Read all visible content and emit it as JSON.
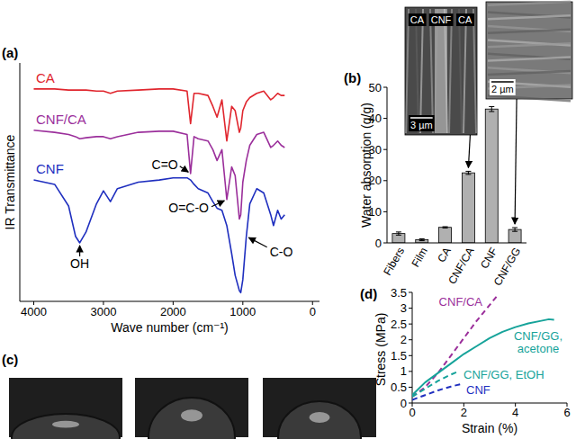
{
  "chart_data": [
    {
      "type": "line",
      "panel": "(a)",
      "xlabel": "Wave number (cm⁻¹)",
      "ylabel": "IR Transmittance",
      "xlim": [
        4200,
        -100
      ],
      "xticks": [
        4000,
        3000,
        2000,
        1000,
        0
      ],
      "ylim": [
        0,
        110
      ],
      "tick_labels": "x",
      "x": [
        4000,
        3700,
        3500,
        3400,
        3340,
        3250,
        3100,
        3000,
        2900,
        2800,
        2500,
        2200,
        2000,
        1800,
        1750,
        1700,
        1640,
        1500,
        1430,
        1370,
        1300,
        1230,
        1160,
        1110,
        1050,
        1030,
        1000,
        950,
        900,
        800,
        700,
        600,
        560,
        500,
        450,
        400
      ],
      "series": [
        {
          "name": "CA",
          "color": "#e0262e",
          "line_style": "solid",
          "values": [
            98,
            98,
            97.5,
            97.5,
            97.5,
            97.5,
            97,
            97,
            96,
            97,
            97.5,
            98,
            98,
            97,
            82,
            96,
            96,
            95,
            90,
            85,
            93,
            74,
            90,
            88,
            78,
            80,
            88,
            92,
            94,
            96,
            97,
            93,
            94,
            96,
            95,
            95
          ]
        },
        {
          "name": "CNF/CA",
          "color": "#9b2f9b",
          "line_style": "solid",
          "values": [
            79,
            78,
            77,
            76,
            75,
            75.5,
            76,
            76,
            75,
            76,
            78,
            78.5,
            78.5,
            77,
            59,
            76,
            75,
            74,
            70,
            65,
            70,
            47,
            62,
            58,
            38,
            40,
            55,
            65,
            72,
            77,
            78,
            71,
            72,
            74,
            72,
            71
          ]
        },
        {
          "name": "CNF",
          "color": "#1f2fbf",
          "line_style": "solid",
          "values": [
            56,
            54,
            44,
            30,
            27,
            32,
            45,
            51,
            46,
            52,
            55,
            56,
            57,
            57,
            56,
            54,
            52,
            50,
            46,
            43,
            42,
            35,
            22,
            12,
            5,
            4,
            10,
            30,
            45,
            52,
            50,
            40,
            35,
            42,
            38,
            40
          ]
        }
      ],
      "annotations": [
        {
          "text": "OH",
          "x": 3340,
          "y": 27
        },
        {
          "text": "C=O",
          "x": 1750,
          "y": 59
        },
        {
          "text": "O=C-O",
          "x": 1230,
          "y": 47
        },
        {
          "text": "C-O",
          "x": 950,
          "y": 30
        }
      ]
    },
    {
      "type": "bar",
      "panel": "(b)",
      "ylabel": "Water absorption (g/g)",
      "categories": [
        "Fibers",
        "Film",
        "CA",
        "CNF/CA",
        "CNF",
        "CNF/GG"
      ],
      "values": [
        3,
        1,
        5,
        22.5,
        43,
        4.3
      ],
      "errors": [
        0.5,
        0.3,
        0.2,
        0.5,
        0.8,
        0.6
      ],
      "color": "#b0b0b0",
      "ylim": [
        0,
        50
      ],
      "yticks": [
        0,
        10,
        20,
        30,
        40,
        50
      ],
      "insets": [
        {
          "labels": [
            "CA",
            "CNF",
            "CA"
          ],
          "scale_bar": "3 µm",
          "target": "CNF/CA"
        },
        {
          "scale_bar": "2 µm",
          "target": "CNF/GG"
        }
      ]
    },
    {
      "type": "line",
      "panel": "(d)",
      "xlabel": "Strain (%)",
      "ylabel": "Stress (MPa)",
      "xlim": [
        0,
        6
      ],
      "xticks": [
        0,
        2,
        4,
        6
      ],
      "ylim": [
        0,
        3.5
      ],
      "yticks": [
        0,
        0.5,
        1,
        1.5,
        2,
        2.5,
        3,
        3.5
      ],
      "series": [
        {
          "name": "CNF/CA",
          "color": "#9b2f9b",
          "line_style": "dashed",
          "x": [
            0,
            0.5,
            1,
            1.5,
            2,
            2.5,
            3,
            3.3
          ],
          "values": [
            0.2,
            0.5,
            0.95,
            1.5,
            2.05,
            2.6,
            3.1,
            3.4
          ]
        },
        {
          "name": "CNF/GG, acetone",
          "color": "#16a39a",
          "line_style": "solid",
          "x": [
            0,
            0.5,
            1,
            1.5,
            2,
            2.5,
            3,
            3.5,
            4,
            4.5,
            5,
            5.3,
            5.5
          ],
          "values": [
            0.25,
            0.65,
            0.95,
            1.25,
            1.55,
            1.8,
            2.05,
            2.25,
            2.4,
            2.52,
            2.6,
            2.65,
            2.63
          ]
        },
        {
          "name": "CNF/GG, EtOH",
          "color": "#16a39a",
          "line_style": "dashed",
          "x": [
            0,
            0.5,
            1,
            1.5,
            1.8
          ],
          "values": [
            0.2,
            0.45,
            0.7,
            0.9,
            1.0
          ]
        },
        {
          "name": "CNF",
          "color": "#1f2fbf",
          "line_style": "dashed",
          "x": [
            0,
            0.5,
            1,
            1.5,
            1.9
          ],
          "values": [
            0.1,
            0.25,
            0.4,
            0.52,
            0.6
          ]
        }
      ]
    }
  ],
  "photo_panel": {
    "label": "(c)"
  }
}
